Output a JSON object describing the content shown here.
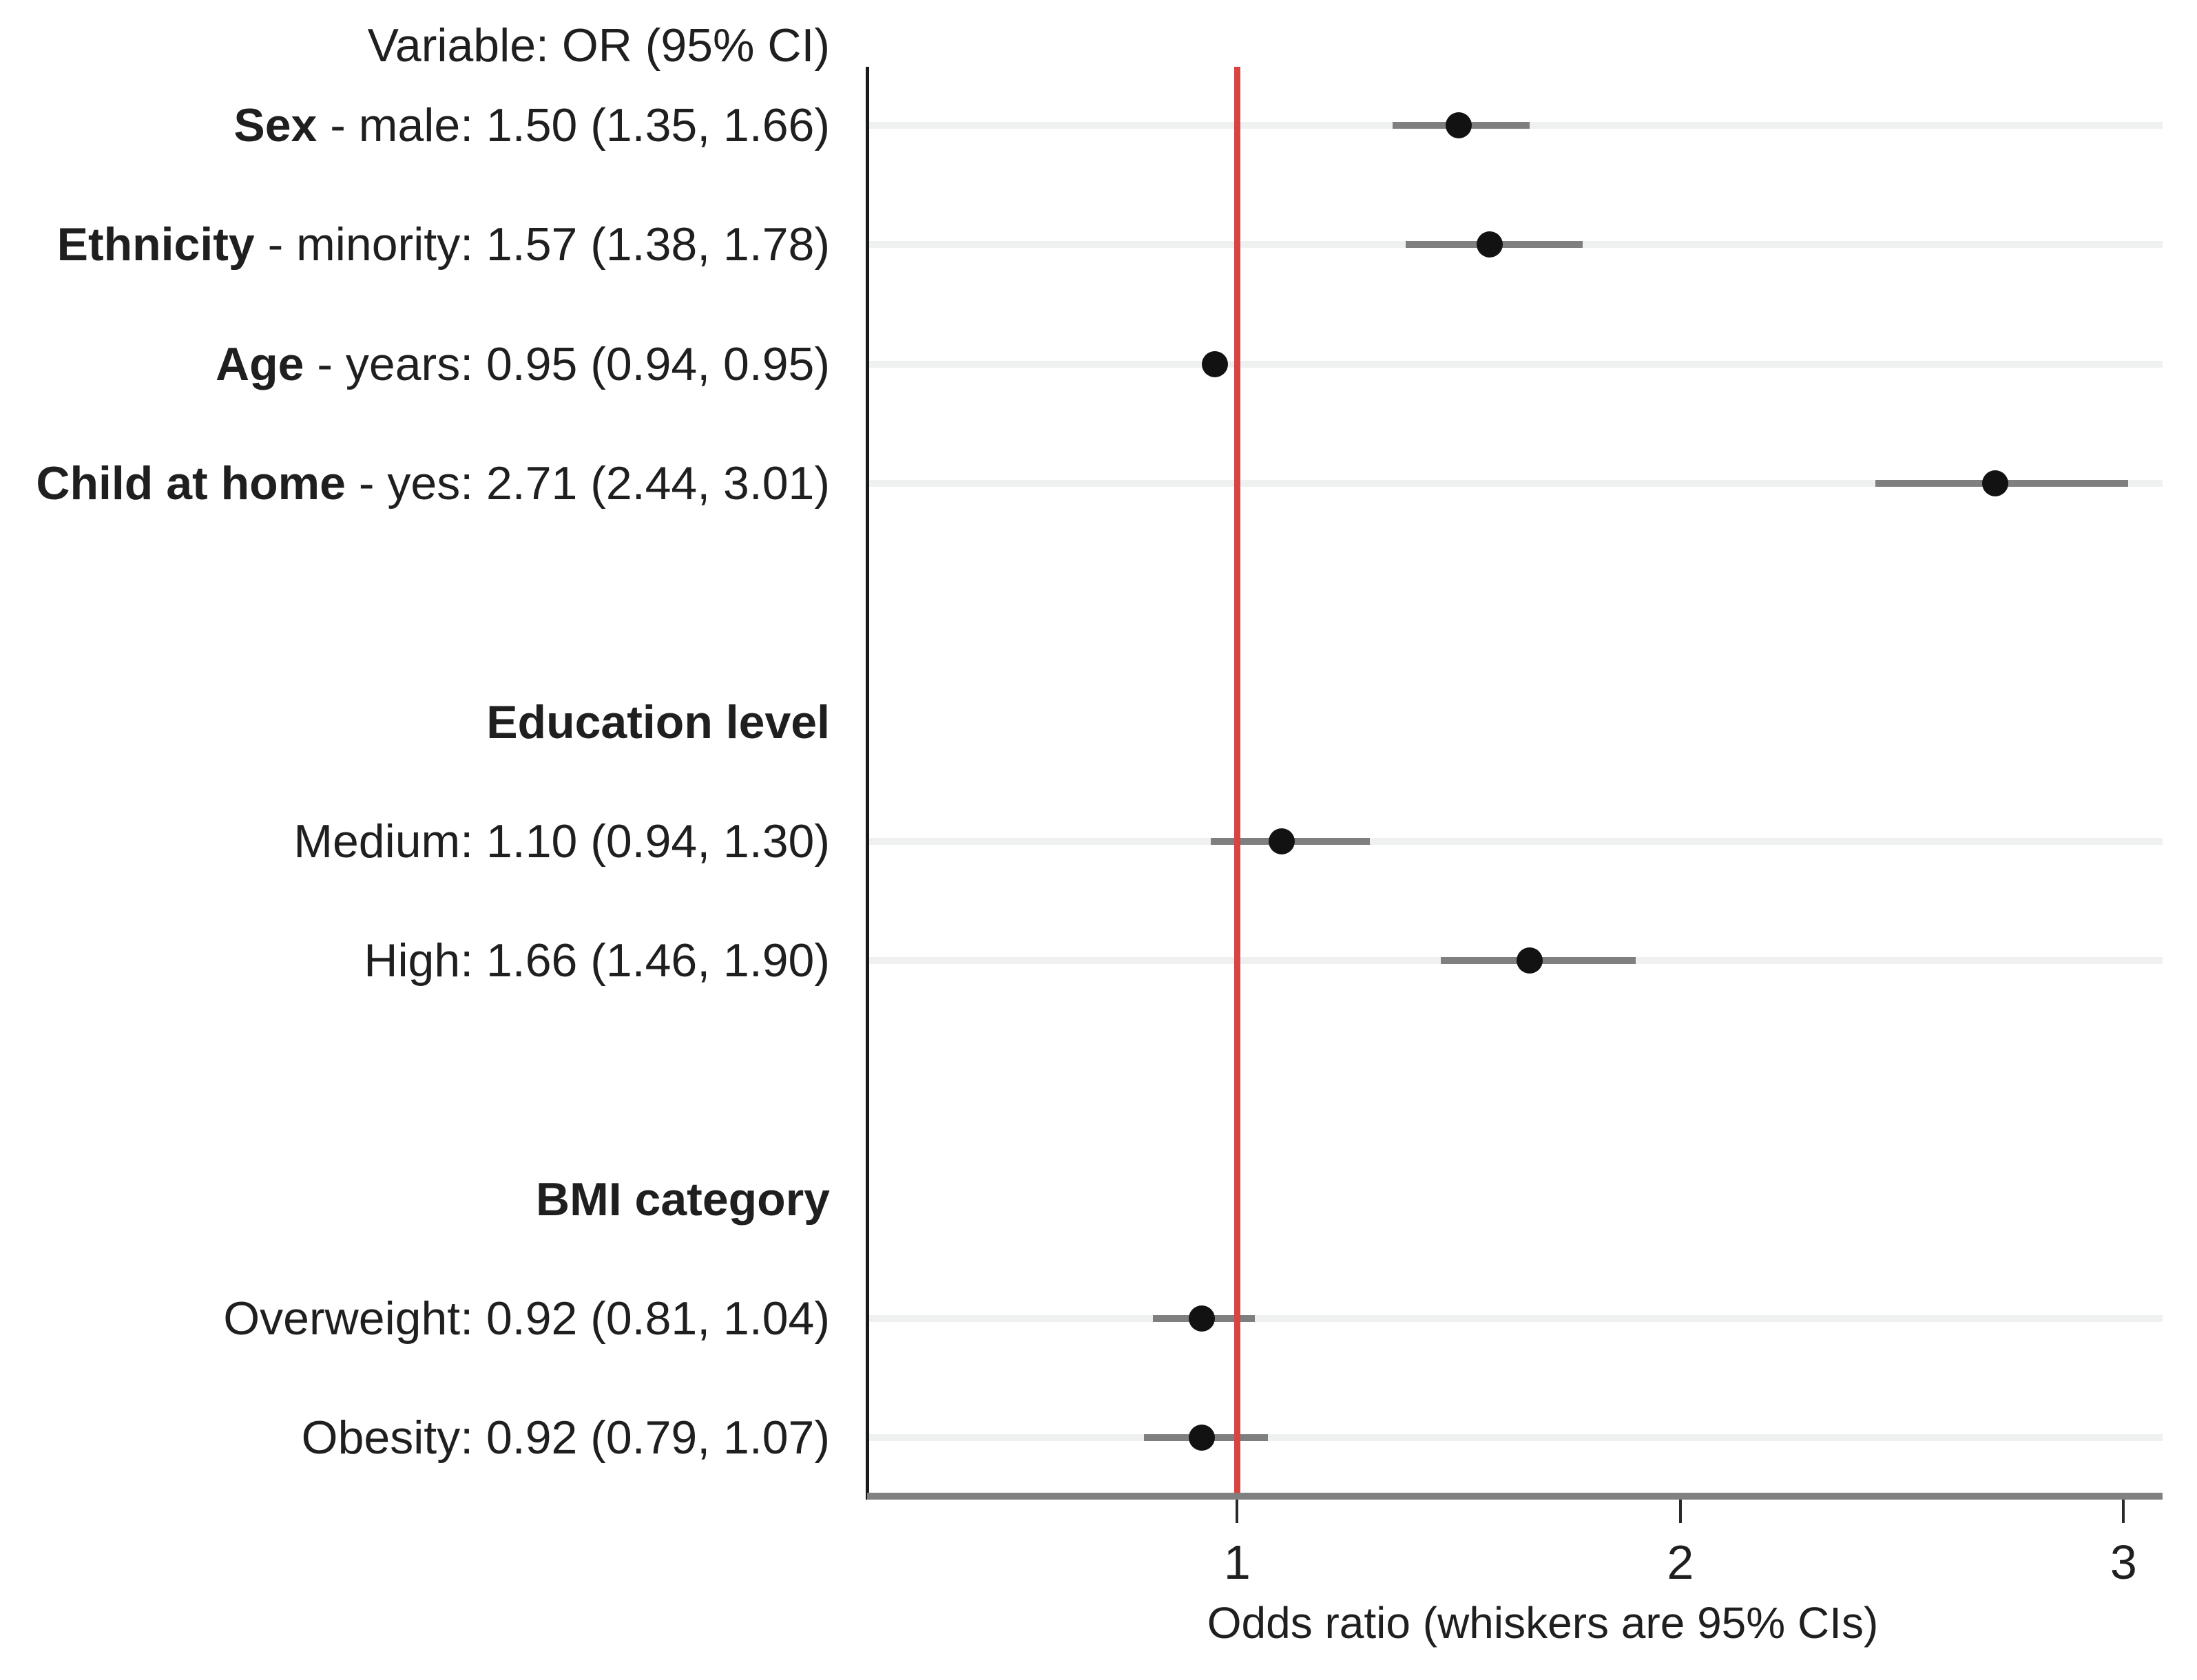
{
  "chart_data": {
    "type": "scatter",
    "variant": "forest-plot",
    "header": "Variable: OR (95% CI)",
    "xlabel": "Odds ratio (whiskers are 95% CIs)",
    "xticks": [
      1,
      2,
      3
    ],
    "xlim": [
      0.165,
      3.088
    ],
    "reference_line": {
      "x": 1
    },
    "grid": "horizontal-light-on-data-rows",
    "legend": "none",
    "rows": [
      {
        "kind": "data",
        "group_bold": "Sex",
        "rest": " - male: 1.50 (1.35, 1.66)",
        "or": 1.5,
        "ci_low": 1.35,
        "ci_high": 1.66
      },
      {
        "kind": "data",
        "group_bold": "Ethnicity",
        "rest": " - minority: 1.57 (1.38, 1.78)",
        "or": 1.57,
        "ci_low": 1.38,
        "ci_high": 1.78
      },
      {
        "kind": "data",
        "group_bold": "Age",
        "rest": " - years: 0.95 (0.94, 0.95)",
        "or": 0.95,
        "ci_low": 0.94,
        "ci_high": 0.95
      },
      {
        "kind": "data",
        "group_bold": "Child at home",
        "rest": " - yes: 2.71 (2.44, 3.01)",
        "or": 2.71,
        "ci_low": 2.44,
        "ci_high": 3.01
      },
      {
        "kind": "blank"
      },
      {
        "kind": "header",
        "label": "Education level"
      },
      {
        "kind": "data",
        "group_bold": "",
        "rest": "Medium: 1.10 (0.94, 1.30)",
        "or": 1.1,
        "ci_low": 0.94,
        "ci_high": 1.3
      },
      {
        "kind": "data",
        "group_bold": "",
        "rest": "High: 1.66 (1.46, 1.90)",
        "or": 1.66,
        "ci_low": 1.46,
        "ci_high": 1.9
      },
      {
        "kind": "blank"
      },
      {
        "kind": "header",
        "label": "BMI category"
      },
      {
        "kind": "data",
        "group_bold": "",
        "rest": "Overweight: 0.92 (0.81, 1.04)",
        "or": 0.92,
        "ci_low": 0.81,
        "ci_high": 1.04
      },
      {
        "kind": "data",
        "group_bold": "",
        "rest": "Obesity: 0.92 (0.79, 1.07)",
        "or": 0.92,
        "ci_low": 0.79,
        "ci_high": 1.07
      }
    ],
    "colors": {
      "point": "#121212",
      "whisker": "#7f7f7f",
      "reference_line": "#d94340",
      "gridline": "#eff1f1",
      "x_axis_line": "#808080",
      "y_axis_line": "#1a1a1a",
      "text": "#1f1f1f",
      "background": "#ffffff"
    }
  }
}
